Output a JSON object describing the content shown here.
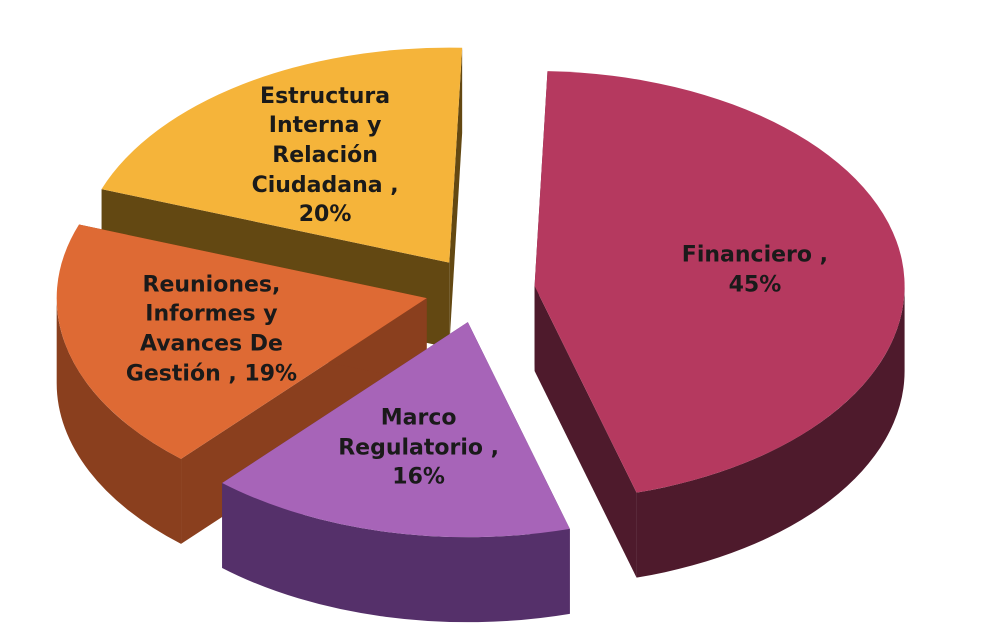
{
  "chart_data": {
    "type": "pie",
    "values": [
      45,
      16,
      19,
      20
    ],
    "value_labels": [
      "Financiero , 45%",
      "Marco Regulatorio , 16%",
      "Reuniones, Informes y Avances De Gestión , 19%",
      "Estructura Interna y Relación Ciudadana , 20%"
    ],
    "colors": [
      "#b5395f",
      "#a764b8",
      "#de6a34",
      "#f5b43a"
    ],
    "side_colors": [
      "#4e1a2c",
      "#55306a",
      "#8a3f1e",
      "#634812"
    ]
  }
}
